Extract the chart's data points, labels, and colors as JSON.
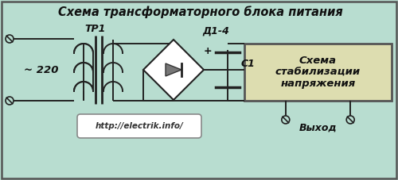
{
  "title": "Схема трансформаторного блока питания",
  "bg_color": "#b8ddd0",
  "border_color": "#555555",
  "line_color": "#222222",
  "figsize": [
    5.0,
    2.27
  ],
  "dpi": 100,
  "tr_label": "ТР1",
  "voltage_label": "~ 220",
  "diode_label": "Д1-4",
  "cap_label": "C1",
  "plus_label": "+",
  "stab_label": "Схема\nстабилизации\nнапряжения",
  "url_label": "http://electrik.info/",
  "output_label": "Выход",
  "stab_box_color": "#ddddb0",
  "stab_box_border": "#555555",
  "url_box_color": "#ffffff",
  "url_box_border": "#888888"
}
